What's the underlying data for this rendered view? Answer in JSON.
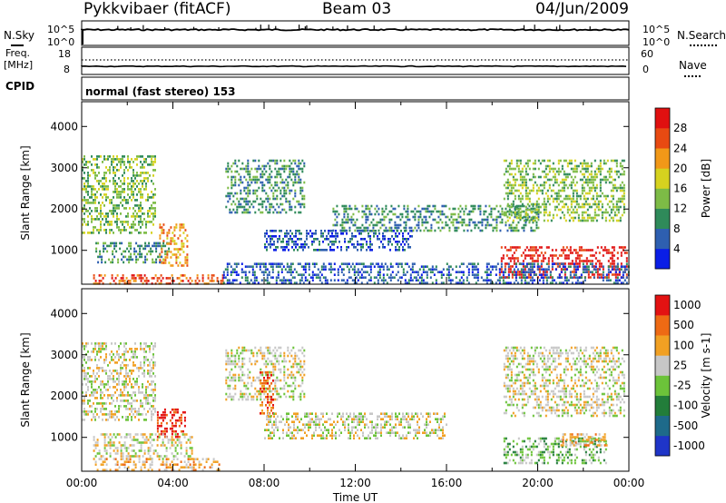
{
  "header": {
    "radar": "Pykkvibaer (fitACF)",
    "beam": "Beam 03",
    "date": "04/Jun/2009"
  },
  "noise_panel": {
    "left_label": "N.Sky",
    "left_ticks": [
      "10^5",
      "10^0"
    ],
    "right_ticks": [
      "10^5",
      "10^0"
    ],
    "right_label": "N.Search",
    "right_label_style": "dotted"
  },
  "freq_panel": {
    "left_label_1": "Freq.",
    "left_label_2": "[MHz]",
    "left_ticks": [
      "18",
      "8"
    ],
    "right_ticks": [
      "60",
      "0"
    ],
    "right_label": "Nave",
    "right_label_style": "dotted"
  },
  "cpid": {
    "label": "CPID",
    "value": "normal (fast stereo) 153"
  },
  "chart_data": [
    {
      "type": "heatmap",
      "title": "",
      "xlabel": "",
      "ylabel": "Slant Range [km]",
      "yticks": [
        "1000",
        "2000",
        "3000",
        "4000"
      ],
      "ylim": [
        180,
        4600
      ],
      "xlim_hours": [
        0,
        24
      ],
      "colorbar": {
        "label": "Power [dB]",
        "ticks": [
          "4",
          "8",
          "12",
          "16",
          "20",
          "24",
          "28"
        ],
        "colors": [
          "#0a1ee6",
          "#2e5fb0",
          "#2f8a5a",
          "#7dbb46",
          "#d6d21f",
          "#f19818",
          "#e84a12",
          "#e01010"
        ]
      },
      "regions": [
        {
          "t0": 0.0,
          "t1": 3.2,
          "r0": 1400,
          "r1": 3300,
          "level": 3
        },
        {
          "t0": 0.6,
          "t1": 3.8,
          "r0": 700,
          "r1": 1200,
          "level": 2
        },
        {
          "t0": 3.4,
          "t1": 4.6,
          "r0": 650,
          "r1": 1650,
          "level": 5
        },
        {
          "t0": 0.5,
          "t1": 6.2,
          "r0": 200,
          "r1": 420,
          "level": 6
        },
        {
          "t0": 6.3,
          "t1": 9.8,
          "r0": 1900,
          "r1": 3200,
          "level": 2
        },
        {
          "t0": 8.0,
          "t1": 14.5,
          "r0": 1000,
          "r1": 1500,
          "level": 1
        },
        {
          "t0": 11.0,
          "t1": 20.0,
          "r0": 1500,
          "r1": 2100,
          "level": 2
        },
        {
          "t0": 18.5,
          "t1": 23.8,
          "r0": 1700,
          "r1": 3200,
          "level": 3
        },
        {
          "t0": 18.3,
          "t1": 23.9,
          "r0": 350,
          "r1": 1100,
          "level": 7
        },
        {
          "t0": 6.2,
          "t1": 24.0,
          "r0": 200,
          "r1": 700,
          "level": 1
        }
      ]
    },
    {
      "type": "heatmap",
      "title": "",
      "xlabel": "Time UT",
      "ylabel": "Slant Range [km]",
      "xticks": [
        "00:00",
        "04:00",
        "08:00",
        "12:00",
        "16:00",
        "20:00",
        "00:00"
      ],
      "yticks": [
        "1000",
        "2000",
        "3000",
        "4000"
      ],
      "ylim": [
        180,
        4600
      ],
      "xlim_hours": [
        0,
        24
      ],
      "colorbar": {
        "label": "Velocity [m s-1]",
        "ticks": [
          "1000",
          "500",
          "100",
          "25",
          "-25",
          "-100",
          "-500",
          "-1000"
        ],
        "colors": [
          "#1f35c8",
          "#1e6a8a",
          "#227d3a",
          "#6cc33a",
          "#c7c7c7",
          "#f1a023",
          "#ee6a14",
          "#e31212"
        ]
      },
      "regions": [
        {
          "t0": 0.0,
          "t1": 3.2,
          "r0": 1400,
          "r1": 3300,
          "level": 4
        },
        {
          "t0": 3.3,
          "t1": 4.5,
          "r0": 1000,
          "r1": 1700,
          "level": 7
        },
        {
          "t0": 0.5,
          "t1": 4.8,
          "r0": 500,
          "r1": 1100,
          "level": 4
        },
        {
          "t0": 0.5,
          "t1": 6.0,
          "r0": 200,
          "r1": 500,
          "level": 5
        },
        {
          "t0": 6.3,
          "t1": 9.8,
          "r0": 1900,
          "r1": 3200,
          "level": 4
        },
        {
          "t0": 7.8,
          "t1": 8.4,
          "r0": 1500,
          "r1": 2600,
          "level": 6
        },
        {
          "t0": 8.0,
          "t1": 16.0,
          "r0": 1000,
          "r1": 1600,
          "level": 4
        },
        {
          "t0": 18.5,
          "t1": 23.8,
          "r0": 1500,
          "r1": 3200,
          "level": 4
        },
        {
          "t0": 18.5,
          "t1": 23.0,
          "r0": 400,
          "r1": 1000,
          "level": 3
        },
        {
          "t0": 21.0,
          "t1": 23.0,
          "r0": 800,
          "r1": 1100,
          "level": 5
        }
      ]
    }
  ]
}
